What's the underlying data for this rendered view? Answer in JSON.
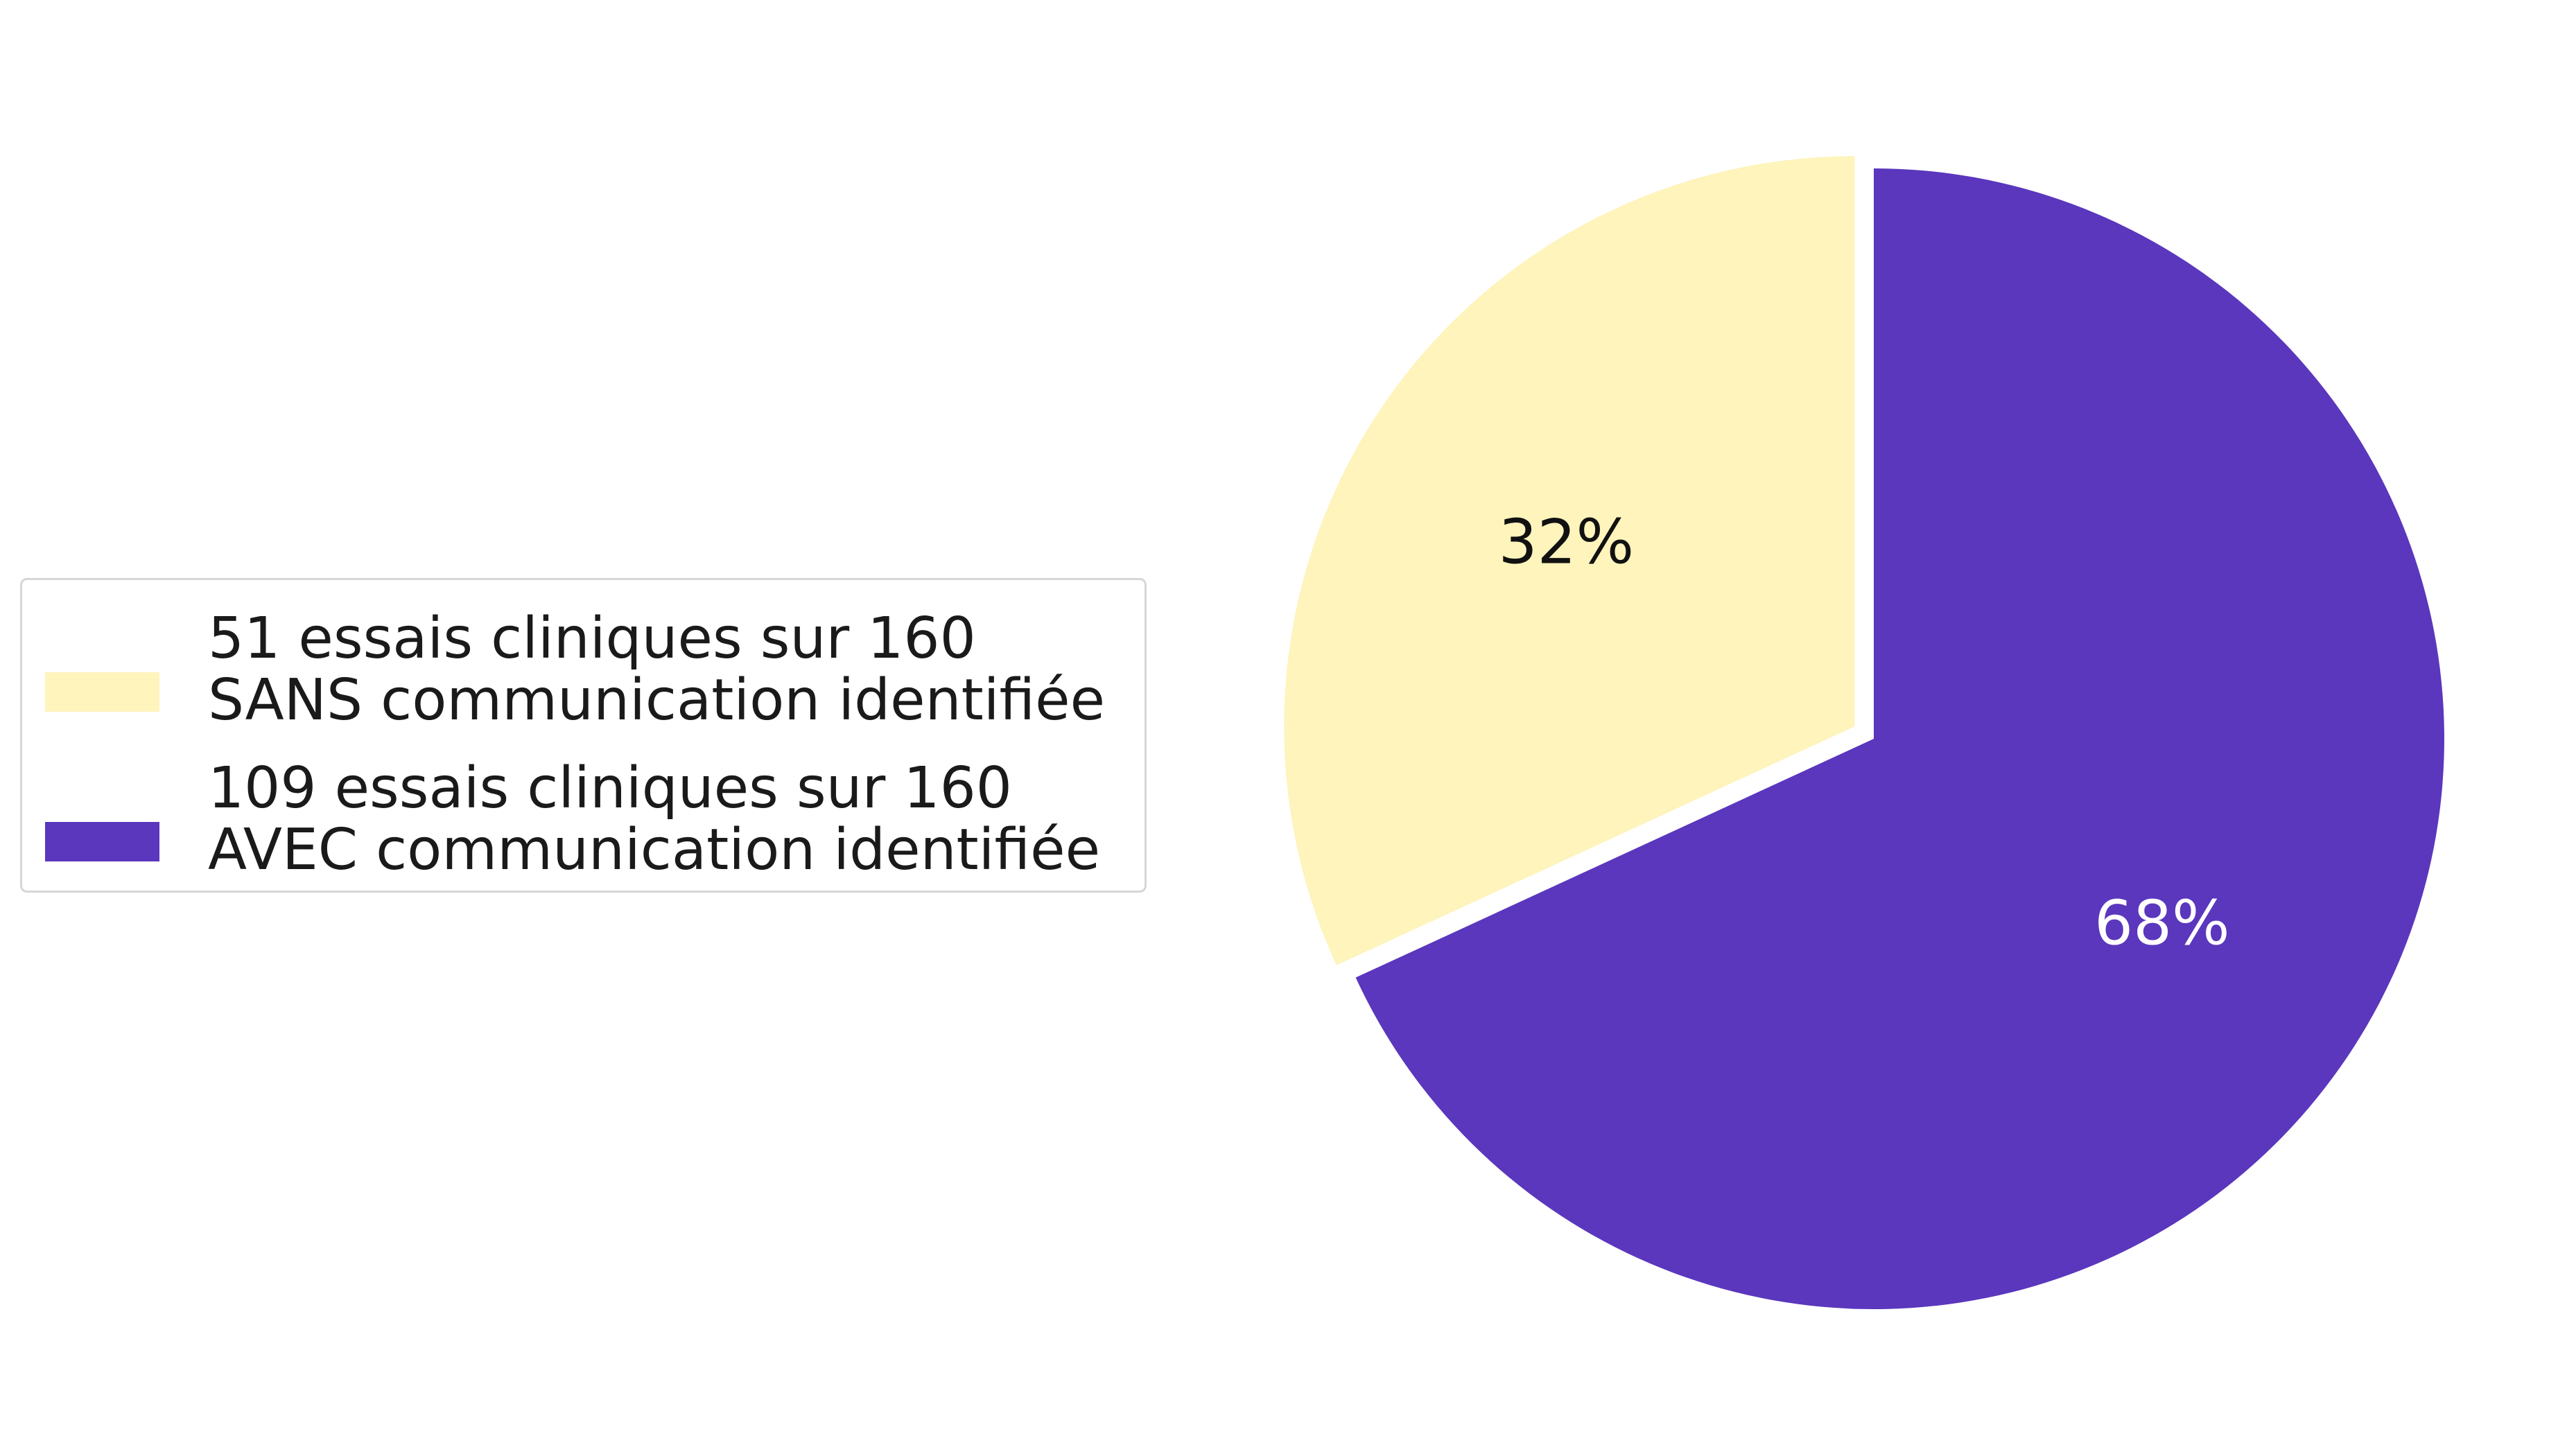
{
  "chart_data": {
    "type": "pie",
    "slices": [
      {
        "label": "51 essais cliniques sur 160 SANS communication identifiée",
        "legend_lines": [
          "51 essais cliniques sur 160",
          "SANS communication identifiée"
        ],
        "value": 51,
        "percent_label": "32%",
        "color": "#fef4bc",
        "text_color": "#111111",
        "exploded": true
      },
      {
        "label": "109 essais cliniques sur 160 AVEC communication identifiée",
        "legend_lines": [
          "109 essais cliniques sur 160",
          "AVEC communication identifiée"
        ],
        "value": 109,
        "percent_label": "68%",
        "color": "#5a37bd",
        "text_color": "#ffffff",
        "exploded": false
      }
    ],
    "total": 160,
    "start": "top, clockwise for the larger slice",
    "legend_placement": "left"
  }
}
